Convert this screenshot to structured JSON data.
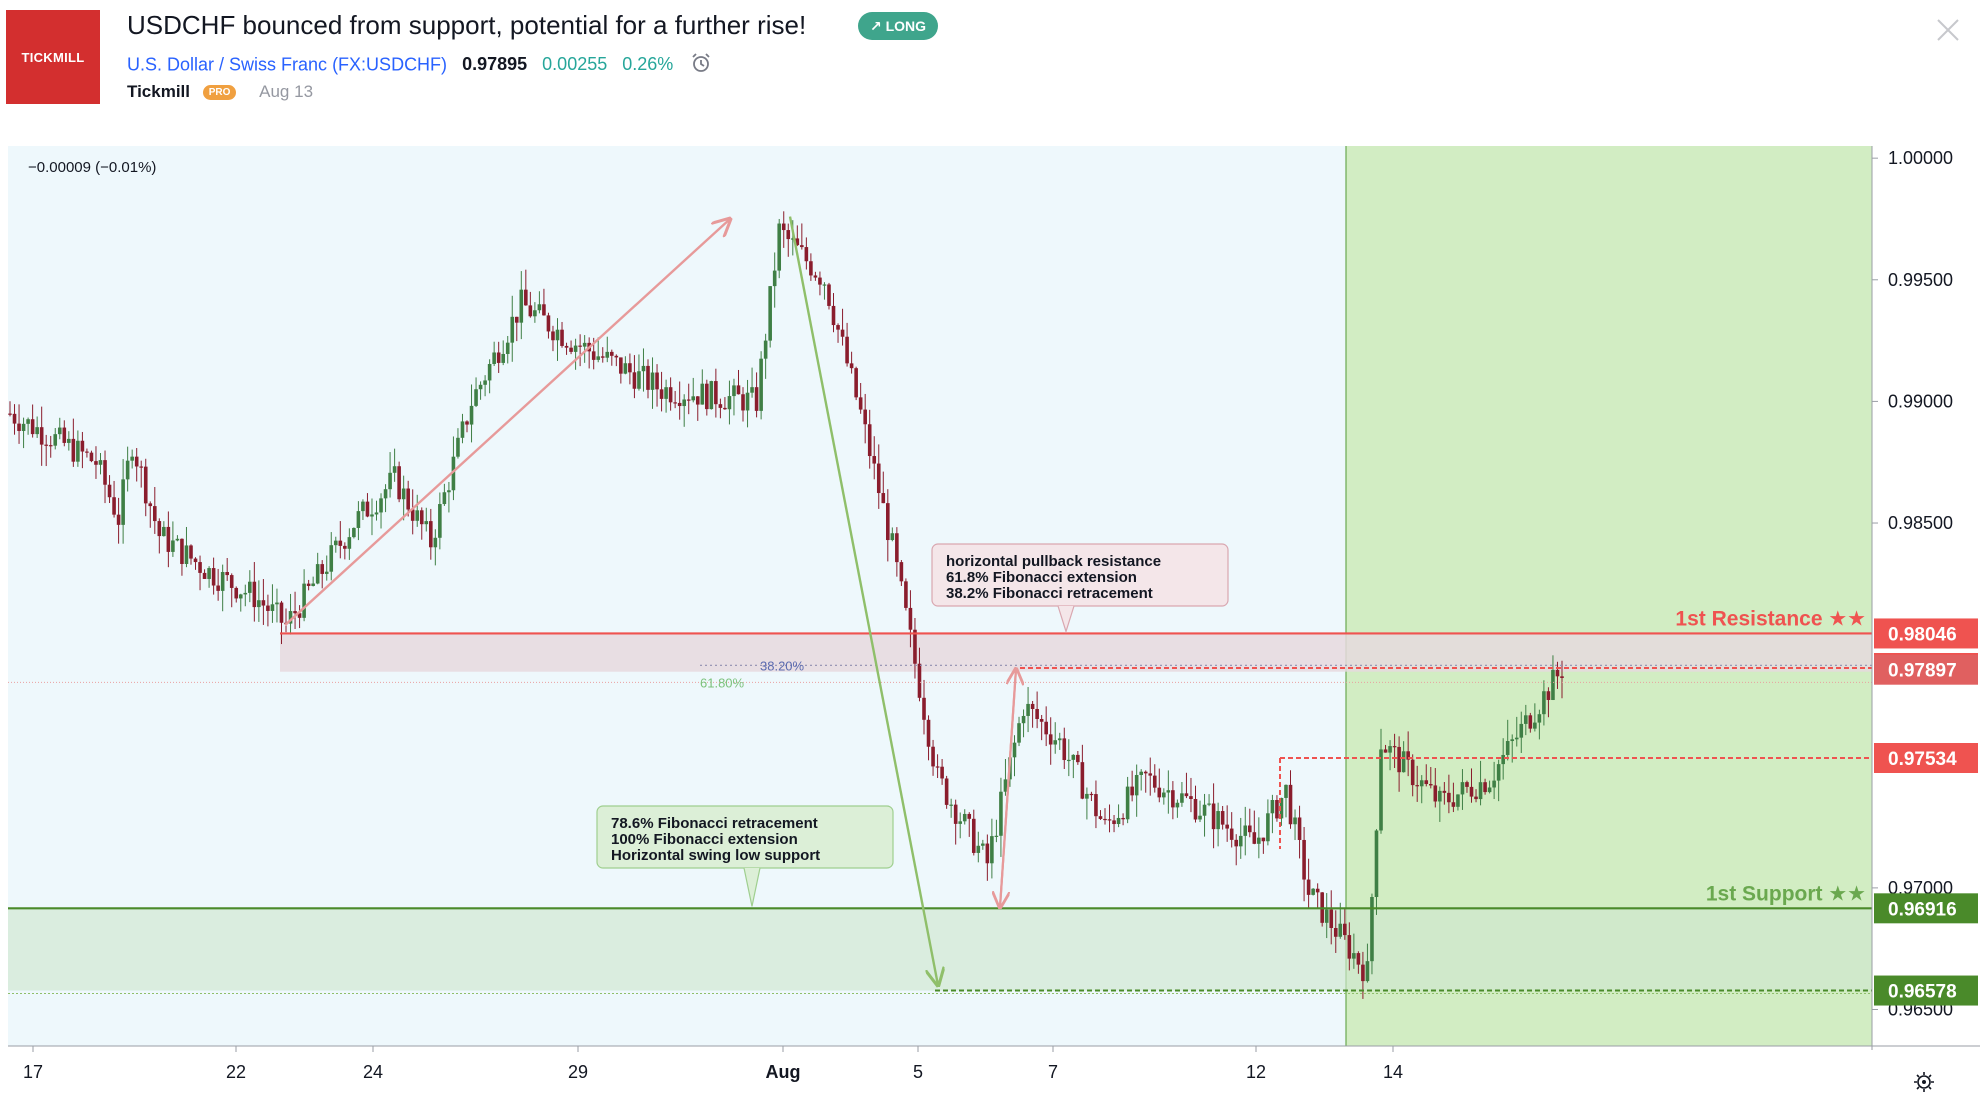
{
  "header": {
    "logo_text": "TICKMILL",
    "title": "USDCHF bounced from support, potential for a further rise!",
    "badge": "↗ LONG",
    "symbol_name": "U.S. Dollar / Swiss Franc",
    "symbol_code": "(FX:USDCHF)",
    "price": "0.97895",
    "change": "0.00255",
    "change_pct": "0.26%",
    "author": "Tickmill",
    "pro_badge": "PRO",
    "date": "Aug 13"
  },
  "colors": {
    "resistance": "#ef5350",
    "support": "#4a8a2a",
    "projection_zone": "#c8eab0",
    "chart_bg": "#eef8fc",
    "candle_up": "#3f7f45",
    "candle_down": "#8a1d2d"
  },
  "chart_data": {
    "type": "candlestick",
    "symbol": "USDCHF",
    "legend_change": "−0.00009 (−0.01%)",
    "ylim": [
      0.9635,
      1.0005
    ],
    "y_ticks": [
      "1.00000",
      "0.99500",
      "0.99000",
      "0.98500",
      "0.97000",
      "0.96500"
    ],
    "x_ticks": [
      "17",
      "22",
      "24",
      "29",
      "Aug",
      "5",
      "7",
      "12",
      "14"
    ],
    "price_anchors": [
      [
        "Jul 17",
        0.9895
      ],
      [
        "Jul 18",
        0.9875
      ],
      [
        "Jul 19",
        0.9852
      ],
      [
        "Jul 19b",
        0.9883
      ],
      [
        "Jul 20",
        0.9845
      ],
      [
        "Jul 21",
        0.983
      ],
      [
        "Jul 22",
        0.982
      ],
      [
        "Jul 23",
        0.9808
      ],
      [
        "Jul 24",
        0.985
      ],
      [
        "Jul 25",
        0.9868
      ],
      [
        "Jul 26",
        0.9842
      ],
      [
        "Jul 27",
        0.99
      ],
      [
        "Jul 28",
        0.994
      ],
      [
        "Jul 29",
        0.9925
      ],
      [
        "Jul 30",
        0.9905
      ],
      [
        "Jul 31",
        0.99
      ],
      [
        "Aug 1",
        0.997
      ],
      [
        "Aug 2",
        0.995
      ],
      [
        "Aug 3",
        0.9895
      ],
      [
        "Aug 4",
        0.984
      ],
      [
        "Aug 5",
        0.9745
      ],
      [
        "Aug 6",
        0.971
      ],
      [
        "Aug 6b",
        0.9775
      ],
      [
        "Aug 7",
        0.976
      ],
      [
        "Aug 8",
        0.9725
      ],
      [
        "Aug 9",
        0.9745
      ],
      [
        "Aug 10",
        0.9735
      ],
      [
        "Aug 11",
        0.9718
      ],
      [
        "Aug 12",
        0.974
      ],
      [
        "Aug 12b",
        0.9698
      ],
      [
        "Aug 13",
        0.9665
      ],
      [
        "Aug 14",
        0.976
      ],
      [
        "Aug 15",
        0.9735
      ],
      [
        "Aug 16",
        0.9745
      ],
      [
        "Aug 17",
        0.9765
      ],
      [
        "Aug 18",
        0.979
      ]
    ],
    "levels": [
      {
        "name": "1st Resistance ★★",
        "value": 0.98046,
        "color": "#ef5350"
      },
      {
        "name": "",
        "value": 0.97904,
        "color": "#ef5350"
      },
      {
        "name": "",
        "value": 0.97897,
        "color": "#e06060"
      },
      {
        "name": "",
        "value": 0.97534,
        "color": "#ef5350"
      },
      {
        "name": "1st Support ★★",
        "value": 0.96916,
        "color": "#4a8a2a"
      },
      {
        "name": "",
        "value": 0.96578,
        "color": "#4a8a2a"
      }
    ],
    "fib_labels": [
      "38.20%",
      "61.80%"
    ],
    "annotations": {
      "resistance_note": [
        "horizontal pullback resistance",
        "61.8% Fibonacci extension",
        "38.2% Fibonacci retracement"
      ],
      "support_note": [
        "78.6% Fibonacci retracement",
        "100% Fibonacci extension",
        "Horizontal swing low support"
      ]
    },
    "grid": false
  }
}
